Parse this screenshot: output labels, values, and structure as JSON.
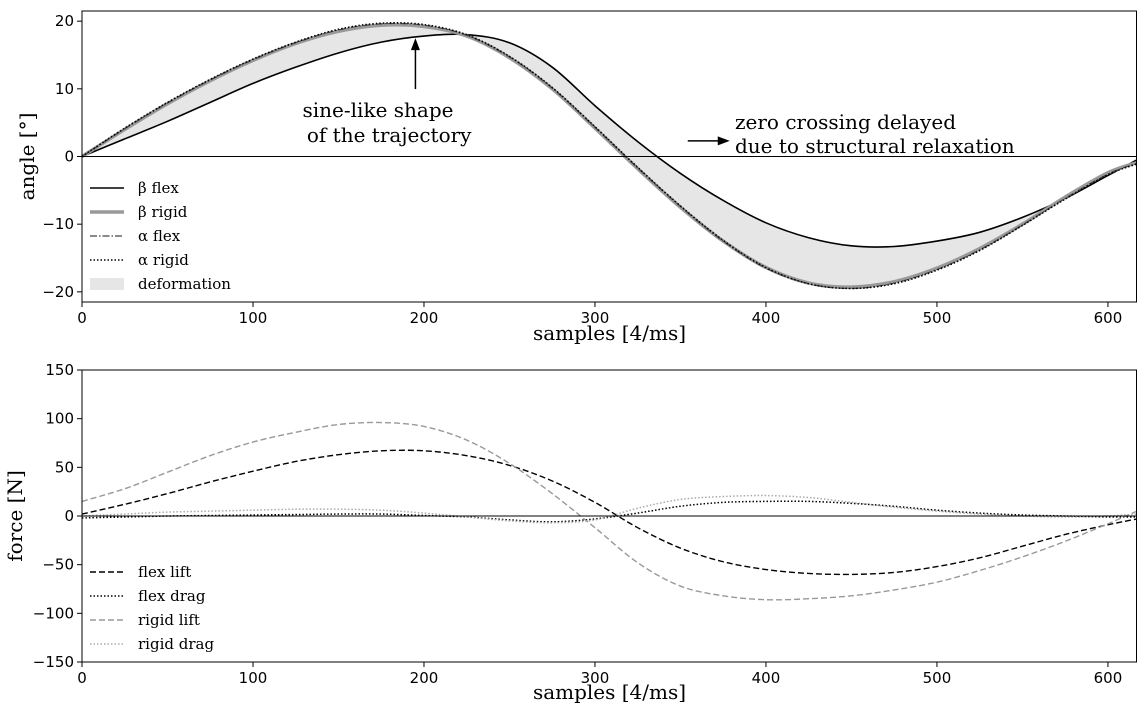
{
  "chart_data": [
    {
      "type": "line",
      "xlabel": "samples [4/ms]",
      "ylabel": "angle [°]",
      "xlim": [
        0,
        617
      ],
      "ylim": [
        -21.5,
        21.5
      ],
      "xticks": [
        0,
        100,
        200,
        300,
        400,
        500,
        600
      ],
      "yticks": [
        -20,
        -10,
        0,
        10,
        20
      ],
      "grid": false,
      "legend_position": "lower-left",
      "x": [
        0,
        25,
        50,
        75,
        100,
        125,
        150,
        175,
        200,
        225,
        250,
        275,
        300,
        325,
        350,
        375,
        400,
        425,
        450,
        475,
        500,
        525,
        550,
        575,
        600,
        617
      ],
      "series": [
        {
          "name": "β flex",
          "style": "solid",
          "color": "#000000",
          "values": [
            0,
            2.6,
            5.2,
            8.0,
            10.8,
            13.2,
            15.3,
            16.9,
            17.8,
            18.0,
            16.8,
            13.2,
            7.5,
            2.2,
            -2.5,
            -6.5,
            -9.8,
            -12.0,
            -13.2,
            -13.3,
            -12.5,
            -11.2,
            -9.0,
            -6.2,
            -2.8,
            -0.5
          ]
        },
        {
          "name": "β rigid",
          "style": "solid-thick",
          "color": "#999999",
          "values": [
            0,
            4.0,
            7.8,
            11.2,
            14.2,
            16.7,
            18.5,
            19.4,
            19.2,
            17.8,
            14.6,
            10.0,
            4.2,
            -1.8,
            -7.5,
            -12.5,
            -16.4,
            -18.7,
            -19.3,
            -18.5,
            -16.5,
            -13.6,
            -10.0,
            -6.0,
            -2.4,
            -0.9
          ]
        },
        {
          "name": "α flex",
          "style": "dashdot",
          "color": "#444444",
          "values": [
            0,
            4.1,
            7.9,
            11.3,
            14.3,
            16.8,
            18.7,
            19.6,
            19.4,
            17.9,
            14.7,
            10.1,
            4.3,
            -1.7,
            -7.4,
            -12.5,
            -16.5,
            -18.8,
            -19.5,
            -18.7,
            -16.7,
            -13.8,
            -10.1,
            -6.2,
            -2.6,
            -1.0
          ]
        },
        {
          "name": "α rigid",
          "style": "dotted",
          "color": "#000000",
          "values": [
            0,
            4.2,
            8.0,
            11.4,
            14.4,
            16.9,
            18.8,
            19.7,
            19.5,
            18.0,
            14.8,
            10.2,
            4.4,
            -1.6,
            -7.3,
            -12.4,
            -16.4,
            -18.8,
            -19.5,
            -18.8,
            -16.8,
            -13.9,
            -10.2,
            -6.3,
            -2.7,
            -1.1
          ]
        }
      ],
      "legend": [
        {
          "label": "β flex",
          "style": "solid"
        },
        {
          "label": "β rigid",
          "style": "solid-thick"
        },
        {
          "label": "α flex",
          "style": "dashdot"
        },
        {
          "label": "α rigid",
          "style": "dotted"
        },
        {
          "label": "deformation",
          "style": "fill"
        }
      ],
      "fill": {
        "label": "deformation",
        "between": [
          "β flex",
          "α flex"
        ],
        "color": "#e6e6e6"
      },
      "annotations": [
        {
          "lines": [
            "sine-like shape",
            " of the trajectory"
          ],
          "arrow_to": [
            195,
            17.5
          ]
        },
        {
          "lines": [
            "zero crossing delayed",
            "due to structural relaxation"
          ],
          "arrow_to": [
            380,
            2.3
          ]
        }
      ]
    },
    {
      "type": "line",
      "xlabel": "samples [4/ms]",
      "ylabel": "force [N]",
      "xlim": [
        0,
        617
      ],
      "ylim": [
        -150,
        150
      ],
      "xticks": [
        0,
        100,
        200,
        300,
        400,
        500,
        600
      ],
      "yticks": [
        -150,
        -100,
        -50,
        0,
        50,
        100,
        150
      ],
      "grid": false,
      "legend_position": "lower-left",
      "x": [
        0,
        25,
        50,
        75,
        100,
        125,
        150,
        175,
        200,
        225,
        250,
        275,
        300,
        325,
        350,
        375,
        400,
        425,
        450,
        475,
        500,
        525,
        550,
        575,
        600,
        617
      ],
      "series": [
        {
          "name": "flex lift",
          "style": "dashed",
          "color": "#000000",
          "values": [
            2,
            12,
            23,
            35,
            46,
            56,
            63,
            67,
            67,
            62,
            52,
            36,
            14,
            -12,
            -33,
            -47,
            -55,
            -59,
            -60,
            -58,
            -52,
            -43,
            -31,
            -19,
            -9,
            -3
          ]
        },
        {
          "name": "flex drag",
          "style": "dotted",
          "color": "#000000",
          "values": [
            -2,
            -1,
            0,
            0.5,
            1,
            1.5,
            2,
            2,
            0.5,
            -1,
            -4,
            -6,
            -3,
            3,
            10,
            14,
            15,
            15,
            13,
            10,
            6,
            3,
            1,
            0,
            -1,
            -1
          ]
        },
        {
          "name": "rigid lift",
          "style": "dashed",
          "color": "#999999",
          "values": [
            15,
            28,
            45,
            62,
            76,
            86,
            94,
            96,
            92,
            78,
            54,
            23,
            -12,
            -48,
            -72,
            -82,
            -86,
            -85,
            -82,
            -76,
            -68,
            -56,
            -42,
            -26,
            -8,
            5
          ]
        },
        {
          "name": "rigid drag",
          "style": "dotted",
          "color": "#aaaaaa",
          "values": [
            0,
            2,
            4,
            5,
            6,
            7,
            7,
            6,
            3,
            -1,
            -5,
            -7,
            -4,
            8,
            17,
            20,
            21,
            19,
            14,
            9,
            5,
            2,
            0,
            -1,
            0,
            2
          ]
        }
      ],
      "legend": [
        {
          "label": "flex lift",
          "style": "dashed",
          "color": "#000000"
        },
        {
          "label": "flex drag",
          "style": "dotted",
          "color": "#000000"
        },
        {
          "label": "rigid lift",
          "style": "dashed",
          "color": "#999999"
        },
        {
          "label": "rigid drag",
          "style": "dotted",
          "color": "#aaaaaa"
        }
      ]
    }
  ]
}
